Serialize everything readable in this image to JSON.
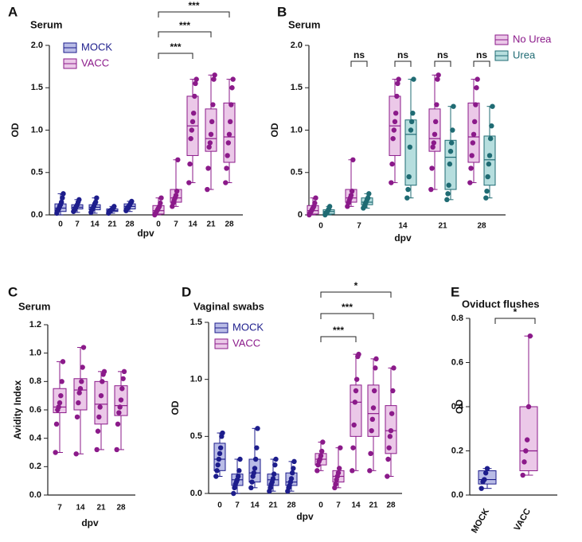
{
  "chart_data": [
    {
      "type": "box",
      "label": "A",
      "title": "Serum",
      "ylabel": "OD",
      "xlabel": "dpv",
      "ylim": [
        0,
        2
      ],
      "yticks": [
        {
          "value": 0,
          "label": "0.0"
        },
        0.5,
        {
          "value": 1,
          "label": "1.0"
        },
        1.5,
        {
          "value": 2,
          "label": "2.0"
        }
      ],
      "categories": [
        "0",
        "7",
        "14",
        "21",
        "28"
      ],
      "legend": "top-left",
      "brackets": [
        "***",
        "***",
        "***"
      ],
      "series": [
        {
          "name": "MOCK",
          "color": "#1d1d8c",
          "fill": "#b9bce6",
          "boxes": [
            {
              "min": 0,
              "q1": 0.04,
              "median": 0.08,
              "q3": 0.13,
              "max": 0.25,
              "points": [
                0.02,
                0.05,
                0.07,
                0.1,
                0.12,
                0.15,
                0.2,
                0.25
              ]
            },
            {
              "min": 0.03,
              "q1": 0.07,
              "median": 0.09,
              "q3": 0.12,
              "max": 0.18,
              "points": [
                0.04,
                0.06,
                0.08,
                0.1,
                0.12,
                0.15,
                0.18
              ]
            },
            {
              "min": 0.02,
              "q1": 0.06,
              "median": 0.09,
              "q3": 0.12,
              "max": 0.2,
              "points": [
                0.03,
                0.06,
                0.08,
                0.1,
                0.13,
                0.15,
                0.2
              ]
            },
            {
              "min": 0.02,
              "q1": 0.04,
              "median": 0.05,
              "q3": 0.07,
              "max": 0.1,
              "points": [
                0.02,
                0.04,
                0.05,
                0.06,
                0.07,
                0.08,
                0.1
              ]
            },
            {
              "min": 0.04,
              "q1": 0.07,
              "median": 0.1,
              "q3": 0.13,
              "max": 0.16,
              "points": [
                0.05,
                0.07,
                0.09,
                0.1,
                0.12,
                0.14,
                0.16
              ]
            }
          ]
        },
        {
          "name": "VACC",
          "color": "#8b1a8a",
          "fill": "#ebc8e8",
          "boxes": [
            {
              "min": 0,
              "q1": 0.01,
              "median": 0.05,
              "q3": 0.11,
              "max": 0.2,
              "points": [
                0,
                0.02,
                0.04,
                0.06,
                0.08,
                0.1,
                0.14,
                0.2
              ]
            },
            {
              "min": 0.1,
              "q1": 0.15,
              "median": 0.2,
              "q3": 0.3,
              "max": 0.65,
              "points": [
                0.1,
                0.14,
                0.17,
                0.2,
                0.23,
                0.28,
                0.65
              ]
            },
            {
              "min": 0.38,
              "q1": 0.7,
              "median": 1.05,
              "q3": 1.4,
              "max": 1.6,
              "points": [
                0.38,
                0.6,
                0.9,
                1,
                1.1,
                1.2,
                1.4,
                1.55,
                1.6
              ]
            },
            {
              "min": 0.3,
              "q1": 0.75,
              "median": 0.9,
              "q3": 1.25,
              "max": 1.65,
              "points": [
                0.3,
                0.55,
                0.8,
                0.85,
                0.95,
                1.1,
                1.3,
                1.6,
                1.65
              ]
            },
            {
              "min": 0.38,
              "q1": 0.62,
              "median": 0.92,
              "q3": 1.32,
              "max": 1.6,
              "points": [
                0.38,
                0.55,
                0.7,
                0.85,
                0.95,
                1.1,
                1.3,
                1.5,
                1.6
              ]
            }
          ]
        }
      ]
    },
    {
      "type": "box",
      "label": "B",
      "title": "Serum",
      "ylabel": "OD",
      "xlabel": "dpv",
      "ylim": [
        0,
        2
      ],
      "yticks": [
        {
          "value": 0,
          "label": "0"
        },
        0.5,
        {
          "value": 1,
          "label": "1.0"
        },
        1.5,
        {
          "value": 2,
          "label": "2.0"
        }
      ],
      "categories": [
        "0",
        "7",
        "14",
        "21",
        "28"
      ],
      "legend": "top-right",
      "brackets": [
        "ns",
        "ns",
        "ns",
        "ns"
      ],
      "series": [
        {
          "name": "No Urea",
          "color": "#8b1a8a",
          "fill": "#ebc8e8",
          "boxes": [
            {
              "min": 0,
              "q1": 0.01,
              "median": 0.05,
              "q3": 0.11,
              "max": 0.2,
              "points": [
                0,
                0.02,
                0.04,
                0.06,
                0.08,
                0.1,
                0.14,
                0.2
              ]
            },
            {
              "min": 0.1,
              "q1": 0.15,
              "median": 0.2,
              "q3": 0.3,
              "max": 0.65,
              "points": [
                0.1,
                0.14,
                0.17,
                0.2,
                0.23,
                0.28,
                0.65
              ]
            },
            {
              "min": 0.38,
              "q1": 0.7,
              "median": 1.05,
              "q3": 1.4,
              "max": 1.6,
              "points": [
                0.38,
                0.6,
                0.9,
                1,
                1.1,
                1.2,
                1.4,
                1.55,
                1.6
              ]
            },
            {
              "min": 0.3,
              "q1": 0.75,
              "median": 0.9,
              "q3": 1.25,
              "max": 1.65,
              "points": [
                0.3,
                0.55,
                0.8,
                0.85,
                0.95,
                1.1,
                1.3,
                1.6,
                1.65
              ]
            },
            {
              "min": 0.38,
              "q1": 0.62,
              "median": 0.92,
              "q3": 1.32,
              "max": 1.6,
              "points": [
                0.38,
                0.55,
                0.7,
                0.85,
                0.95,
                1.1,
                1.3,
                1.5,
                1.6
              ]
            }
          ]
        },
        {
          "name": "Urea",
          "color": "#1f6b73",
          "fill": "#b6dede",
          "boxes": [
            {
              "min": 0,
              "q1": 0.01,
              "median": 0.04,
              "q3": 0.06,
              "max": 0.1,
              "points": [
                0,
                0.02,
                0.03,
                0.05,
                0.07,
                0.1
              ]
            },
            {
              "min": 0.08,
              "q1": 0.12,
              "median": 0.15,
              "q3": 0.2,
              "max": 0.25,
              "points": [
                0.08,
                0.1,
                0.13,
                0.15,
                0.18,
                0.2,
                0.25
              ]
            },
            {
              "min": 0.2,
              "q1": 0.35,
              "median": 0.95,
              "q3": 1.12,
              "max": 1.6,
              "points": [
                0.2,
                0.3,
                0.45,
                0.8,
                1,
                1.1,
                1.2,
                1.6
              ]
            },
            {
              "min": 0.18,
              "q1": 0.3,
              "median": 0.68,
              "q3": 0.88,
              "max": 1.28,
              "points": [
                0.18,
                0.25,
                0.35,
                0.6,
                0.75,
                0.85,
                1,
                1.28
              ]
            },
            {
              "min": 0.2,
              "q1": 0.35,
              "median": 0.65,
              "q3": 0.93,
              "max": 1.28,
              "points": [
                0.2,
                0.28,
                0.45,
                0.6,
                0.7,
                0.9,
                1.05,
                1.28
              ]
            }
          ]
        }
      ]
    },
    {
      "type": "box",
      "label": "C",
      "title": "Serum",
      "ylabel": "Avidity Index",
      "xlabel": "dpv",
      "ylim": [
        0,
        1.2
      ],
      "yticks": [
        {
          "value": 0,
          "label": "0.0"
        },
        0.2,
        0.4,
        0.6,
        0.8,
        {
          "value": 1,
          "label": "1.0"
        },
        1.2
      ],
      "categories": [
        "7",
        "14",
        "21",
        "28"
      ],
      "brackets": [],
      "series": [
        {
          "color": "#8b1a8a",
          "fill": "#ebc8e8",
          "boxes": [
            {
              "min": 0.3,
              "q1": 0.58,
              "median": 0.62,
              "q3": 0.75,
              "max": 0.94,
              "points": [
                0.3,
                0.5,
                0.6,
                0.62,
                0.65,
                0.7,
                0.8,
                0.94
              ]
            },
            {
              "min": 0.29,
              "q1": 0.6,
              "median": 0.74,
              "q3": 0.82,
              "max": 1.04,
              "points": [
                0.29,
                0.55,
                0.65,
                0.72,
                0.75,
                0.8,
                0.9,
                1.04
              ]
            },
            {
              "min": 0.32,
              "q1": 0.5,
              "median": 0.64,
              "q3": 0.8,
              "max": 0.87,
              "points": [
                0.32,
                0.45,
                0.55,
                0.62,
                0.7,
                0.8,
                0.85,
                0.87
              ]
            },
            {
              "min": 0.32,
              "q1": 0.56,
              "median": 0.63,
              "q3": 0.77,
              "max": 0.87,
              "points": [
                0.32,
                0.5,
                0.58,
                0.62,
                0.67,
                0.75,
                0.82,
                0.87
              ]
            }
          ]
        }
      ]
    },
    {
      "type": "box",
      "label": "D",
      "title": "Vaginal swabs",
      "ylabel": "OD",
      "xlabel": "dpv",
      "ylim": [
        0,
        1.5
      ],
      "yticks": [
        {
          "value": 0,
          "label": "0.0"
        },
        0.5,
        {
          "value": 1,
          "label": "1.0"
        },
        1.5
      ],
      "categories": [
        "0",
        "7",
        "14",
        "21",
        "28"
      ],
      "legend": "top-left",
      "brackets": [
        "*",
        "***",
        "***"
      ],
      "series": [
        {
          "name": "MOCK",
          "color": "#1d1d8c",
          "fill": "#b9bce6",
          "boxes": [
            {
              "min": 0.15,
              "q1": 0.2,
              "median": 0.3,
              "q3": 0.44,
              "max": 0.53,
              "points": [
                0.15,
                0.2,
                0.25,
                0.3,
                0.35,
                0.4,
                0.5,
                0.53
              ]
            },
            {
              "min": 0,
              "q1": 0.07,
              "median": 0.12,
              "q3": 0.17,
              "max": 0.3,
              "points": [
                0,
                0.05,
                0.08,
                0.1,
                0.12,
                0.15,
                0.2,
                0.3
              ]
            },
            {
              "min": 0.05,
              "q1": 0.1,
              "median": 0.18,
              "q3": 0.3,
              "max": 0.57,
              "points": [
                0.05,
                0.1,
                0.15,
                0.18,
                0.22,
                0.3,
                0.4,
                0.57
              ]
            },
            {
              "min": 0.02,
              "q1": 0.07,
              "median": 0.12,
              "q3": 0.17,
              "max": 0.3,
              "points": [
                0.02,
                0.05,
                0.08,
                0.1,
                0.13,
                0.17,
                0.25,
                0.3
              ]
            },
            {
              "min": 0.02,
              "q1": 0.07,
              "median": 0.1,
              "q3": 0.18,
              "max": 0.28,
              "points": [
                0.02,
                0.05,
                0.07,
                0.1,
                0.13,
                0.18,
                0.22,
                0.28
              ]
            }
          ]
        },
        {
          "name": "VACC",
          "color": "#8b1a8a",
          "fill": "#ebc8e8",
          "boxes": [
            {
              "min": 0.2,
              "q1": 0.25,
              "median": 0.3,
              "q3": 0.35,
              "max": 0.45,
              "points": [
                0.2,
                0.25,
                0.28,
                0.3,
                0.33,
                0.37,
                0.45
              ]
            },
            {
              "min": 0.05,
              "q1": 0.1,
              "median": 0.15,
              "q3": 0.2,
              "max": 0.4,
              "points": [
                0.05,
                0.08,
                0.12,
                0.15,
                0.18,
                0.22,
                0.4
              ]
            },
            {
              "min": 0.2,
              "q1": 0.5,
              "median": 0.8,
              "q3": 0.95,
              "max": 1.22,
              "points": [
                0.2,
                0.4,
                0.6,
                0.8,
                0.9,
                1,
                1.2,
                1.22
              ]
            },
            {
              "min": 0.2,
              "q1": 0.5,
              "median": 0.7,
              "q3": 0.95,
              "max": 1.18,
              "points": [
                0.2,
                0.35,
                0.55,
                0.65,
                0.75,
                0.9,
                1.1,
                1.18
              ]
            },
            {
              "min": 0.15,
              "q1": 0.35,
              "median": 0.55,
              "q3": 0.77,
              "max": 1.1,
              "points": [
                0.15,
                0.3,
                0.4,
                0.5,
                0.55,
                0.7,
                0.9,
                1.1
              ]
            }
          ]
        }
      ]
    },
    {
      "type": "box",
      "label": "E",
      "title": "Oviduct flushes",
      "ylabel": "OD",
      "ylim": [
        0,
        0.8
      ],
      "yticks": [
        {
          "value": 0,
          "label": "0.0"
        },
        0.2,
        0.4,
        0.6,
        0.8
      ],
      "categories": [
        "MOCK",
        "VACC"
      ],
      "brackets": [
        "*"
      ],
      "series": [
        {
          "color": [
            "#1d1d8c",
            "#8b1a8a"
          ],
          "fill": [
            "#b9bce6",
            "#ebc8e8"
          ],
          "boxes": [
            {
              "min": 0.03,
              "q1": 0.05,
              "median": 0.07,
              "q3": 0.11,
              "max": 0.12,
              "points": [
                0.03,
                0.06,
                0.07,
                0.1,
                0.12
              ]
            },
            {
              "min": 0.09,
              "q1": 0.11,
              "median": 0.2,
              "q3": 0.4,
              "max": 0.72,
              "points": [
                0.09,
                0.15,
                0.2,
                0.25,
                0.4,
                0.72
              ]
            }
          ]
        }
      ]
    }
  ]
}
